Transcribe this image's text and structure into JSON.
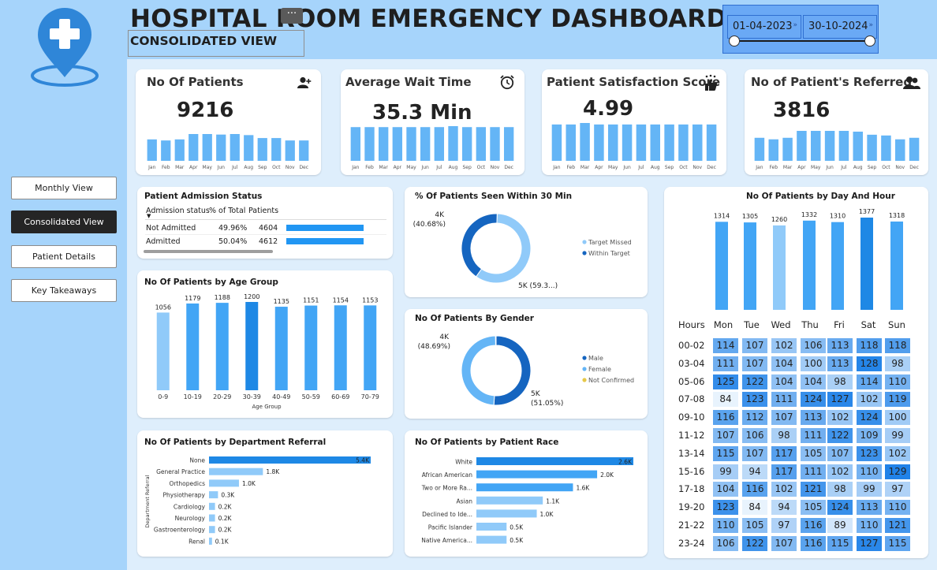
{
  "header": {
    "title": "HOSPITAL ROOM EMERGENCY DASHBOARD",
    "subtitle": "CONSOLIDATED VIEW",
    "date_start": "01-04-2023",
    "date_end": "30-10-2024",
    "more_icon": "ellipsis-icon"
  },
  "logo": {
    "icon": "medical-location-pin-icon",
    "color": "#2f86d8"
  },
  "nav": {
    "items": [
      {
        "label": "Monthly View",
        "active": false
      },
      {
        "label": "Consolidated View",
        "active": true
      },
      {
        "label": "Patient Details",
        "active": false
      },
      {
        "label": "Key Takeaways",
        "active": false
      }
    ]
  },
  "kpis": [
    {
      "title": "No Of Patients",
      "value": "9216",
      "icon": "add-user-icon"
    },
    {
      "title": "Average Wait Time",
      "value": "35.3 Min",
      "icon": "alarm-clock-icon"
    },
    {
      "title": "Patient Satisfaction Score",
      "value": "4.99",
      "icon": "satisfaction-icon"
    },
    {
      "title": "No of Patient's Referred",
      "value": "3816",
      "icon": "users-icon"
    }
  ],
  "colors": {
    "accent": "#2196f3",
    "light": "#90caf9",
    "mid": "#64b5f6",
    "dark": "#1565c0",
    "main_bg": "#deeefc"
  },
  "chart_data": [
    {
      "type": "bar",
      "id": "kpi-patients-monthly",
      "categories": [
        "Jan",
        "Feb",
        "Mar",
        "Apr",
        "May",
        "Jun",
        "Jul",
        "Aug",
        "Sep",
        "Oct",
        "Nov",
        "Dec"
      ],
      "values": [
        800,
        760,
        800,
        1000,
        1000,
        980,
        1000,
        960,
        850,
        850,
        760,
        760
      ]
    },
    {
      "type": "bar",
      "id": "kpi-wait-monthly",
      "categories": [
        "Jan",
        "Feb",
        "Mar",
        "Apr",
        "May",
        "Jun",
        "Jul",
        "Aug",
        "Sep",
        "Oct",
        "Nov",
        "Dec"
      ],
      "values": [
        35,
        35,
        35,
        35,
        35,
        35,
        35,
        36,
        35,
        35,
        35,
        35
      ]
    },
    {
      "type": "bar",
      "id": "kpi-satisfaction-monthly",
      "categories": [
        "Jan",
        "Feb",
        "Mar",
        "Apr",
        "May",
        "Jun",
        "Jul",
        "Aug",
        "Sep",
        "Oct",
        "Nov",
        "Dec"
      ],
      "values": [
        4.9,
        4.9,
        5.1,
        4.9,
        4.9,
        4.9,
        4.9,
        4.9,
        4.9,
        4.9,
        4.9,
        4.9
      ]
    },
    {
      "type": "bar",
      "id": "kpi-referred-monthly",
      "categories": [
        "Jan",
        "Feb",
        "Mar",
        "Apr",
        "May",
        "Jun",
        "Jul",
        "Aug",
        "Sep",
        "Oct",
        "Nov",
        "Dec"
      ],
      "values": [
        300,
        280,
        300,
        390,
        390,
        390,
        390,
        380,
        340,
        330,
        280,
        300
      ]
    },
    {
      "type": "table",
      "id": "admission-status",
      "title": "Patient Admission Status",
      "columns": [
        "Admission status",
        "% of Total",
        "Patients"
      ],
      "rows": [
        {
          "status": "Not Admitted",
          "pct": "49.96%",
          "patients": "4604",
          "value": 4604
        },
        {
          "status": "Admitted",
          "pct": "50.04%",
          "patients": "4612",
          "value": 4612
        }
      ]
    },
    {
      "type": "pie",
      "id": "seen-30min",
      "title": "% Of Patients Seen Within 30 Min",
      "slices": [
        {
          "name": "Target Missed",
          "value": 59.32,
          "label": "5K (59.3...)",
          "color": "#90caf9"
        },
        {
          "name": "Within Target",
          "value": 40.68,
          "label": "4K\n(40.68%)",
          "color": "#1565c0"
        }
      ]
    },
    {
      "type": "pie",
      "id": "gender",
      "title": "No Of Patients By Gender",
      "slices": [
        {
          "name": "Male",
          "value": 51.05,
          "label": "5K\n(51.05%)",
          "color": "#1565c0"
        },
        {
          "name": "Female",
          "value": 48.69,
          "label": "4K\n(48.69%)",
          "color": "#64b5f6"
        },
        {
          "name": "Not Confirmed",
          "value": 0.26,
          "label": "",
          "color": "#e6c84a"
        }
      ]
    },
    {
      "type": "bar",
      "id": "age-group",
      "title": "No Of Patients by Age Group",
      "xlabel": "Age Group",
      "categories": [
        "0-9",
        "10-19",
        "20-29",
        "30-39",
        "40-49",
        "50-59",
        "60-69",
        "70-79"
      ],
      "values": [
        1056,
        1179,
        1188,
        1200,
        1135,
        1151,
        1154,
        1153
      ]
    },
    {
      "type": "bar",
      "id": "dept-referral",
      "orientation": "horizontal",
      "title": "No Of Patients by Department Referral",
      "ylabel": "Department Referral",
      "categories": [
        "None",
        "General Practice",
        "Orthopedics",
        "Physiotherapy",
        "Cardiology",
        "Neurology",
        "Gastroenterology",
        "Renal"
      ],
      "values": [
        5.4,
        1.8,
        1.0,
        0.3,
        0.2,
        0.2,
        0.2,
        0.1
      ],
      "labels": [
        "5.4K",
        "1.8K",
        "1.0K",
        "0.3K",
        "0.2K",
        "0.2K",
        "0.2K",
        "0.1K"
      ]
    },
    {
      "type": "bar",
      "id": "patient-race",
      "orientation": "horizontal",
      "title": "No Of Patients by Patient Race",
      "categories": [
        "White",
        "African American",
        "Two or More Ra...",
        "Asian",
        "Declined to Ide...",
        "Pacific Islander",
        "Native America..."
      ],
      "values": [
        2.6,
        2.0,
        1.6,
        1.1,
        1.0,
        0.5,
        0.5
      ],
      "labels": [
        "2.6K",
        "2.0K",
        "1.6K",
        "1.1K",
        "1.0K",
        "0.5K",
        "0.5K"
      ]
    },
    {
      "type": "bar",
      "id": "day-totals",
      "title": "No Of Patients by Day And Hour",
      "categories": [
        "Mon",
        "Tue",
        "Wed",
        "Thu",
        "Fri",
        "Sat",
        "Sun"
      ],
      "values": [
        1314,
        1305,
        1260,
        1332,
        1310,
        1377,
        1318
      ]
    },
    {
      "type": "heatmap",
      "id": "day-hour",
      "row_header": "Hours",
      "columns": [
        "Mon",
        "Tue",
        "Wed",
        "Thu",
        "Fri",
        "Sat",
        "Sun"
      ],
      "rows": [
        "00-02",
        "03-04",
        "05-06",
        "07-08",
        "09-10",
        "11-12",
        "13-14",
        "15-16",
        "17-18",
        "19-20",
        "21-22",
        "23-24"
      ],
      "values": [
        [
          114,
          107,
          102,
          106,
          113,
          118,
          118
        ],
        [
          111,
          107,
          104,
          100,
          113,
          128,
          98
        ],
        [
          125,
          122,
          104,
          104,
          98,
          114,
          110
        ],
        [
          84,
          123,
          111,
          124,
          127,
          102,
          119
        ],
        [
          116,
          112,
          107,
          113,
          102,
          124,
          100
        ],
        [
          107,
          106,
          98,
          111,
          122,
          109,
          99
        ],
        [
          115,
          107,
          117,
          105,
          107,
          123,
          102
        ],
        [
          99,
          94,
          117,
          111,
          102,
          110,
          129
        ],
        [
          104,
          116,
          102,
          121,
          98,
          99,
          97
        ],
        [
          123,
          84,
          94,
          105,
          124,
          113,
          110
        ],
        [
          110,
          105,
          97,
          116,
          89,
          110,
          121
        ],
        [
          106,
          122,
          107,
          116,
          115,
          127,
          115
        ]
      ]
    }
  ]
}
